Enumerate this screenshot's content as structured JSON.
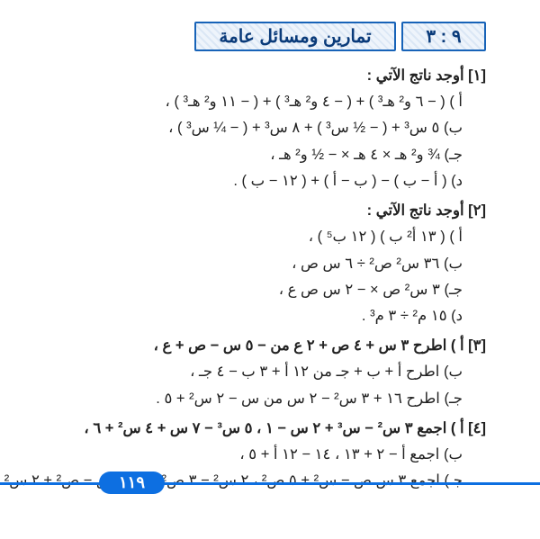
{
  "header": {
    "section_number": "٩ : ٣",
    "section_title": "تمارين ومسائل عامة"
  },
  "exercises": [
    {
      "prompt": "[١] أوجد ناتج الآتي :",
      "items": [
        "أ ) ( − ٦ و² هـ³ ) + ( − ٤ و² هـ³ ) + ( − ١١ و² هـ³ ) ،",
        "ب) ٥ س³ + ( − ½ س³ ) + ٨ س³ + ( − ¼ س³ ) ،",
        "جـ) ¾ و² هـ × ٤ هـ × − ½ و² هـ ،",
        "د) ( أ − ب ) − ( ب − أ ) + ( ١٢ − ب ) ."
      ]
    },
    {
      "prompt": "[٢] أوجد ناتج الآتي :",
      "items": [
        "أ ) ( ١٣ أ² ب ) ( ١٢ ب⁵ ) ،",
        "ب) ٣٦ س² ص² ÷ ٦ س ص ،",
        "جـ) ٣ س² ص × − ٢ س ص ع ،",
        "د) ١٥ م² ÷ ٣ م³ ."
      ]
    },
    {
      "prompt": "[٣]  أ ) اطرح ٣ س + ٤ ص + ٢ ع  من  − ٥ س − ص + ع ،",
      "items": [
        "ب) اطرح أ + ب + جـ  من  ١٢ أ + ٣ ب − ٤ جـ ،",
        "جـ) اطرح ١٦ + ٣ س² − ٢ س  من  س − ٢ س² + ٥ ."
      ]
    },
    {
      "prompt": "[٤]  أ ) اجمع ٣ س² − س³ + ٢ س − ١  ،  ٥ س³ − ٧ س + ٤ س² + ٦ ،",
      "items": [
        "ب) اجمع أ − ٢ + ١٣  ،  ١٤ − ١٢ أ + ٥ ،",
        "جـ) اجمع ٣ س ص − س² + ٥ ص²  ،  ٢ س² − ٣ ص²  ،  ٥ س ص − ص² + ٢ س²."
      ]
    }
  ],
  "page_number": "١١٩",
  "colors": {
    "rule": "#0d6fe1",
    "header_border": "#1763b8",
    "header_text": "#0a3b7a"
  }
}
